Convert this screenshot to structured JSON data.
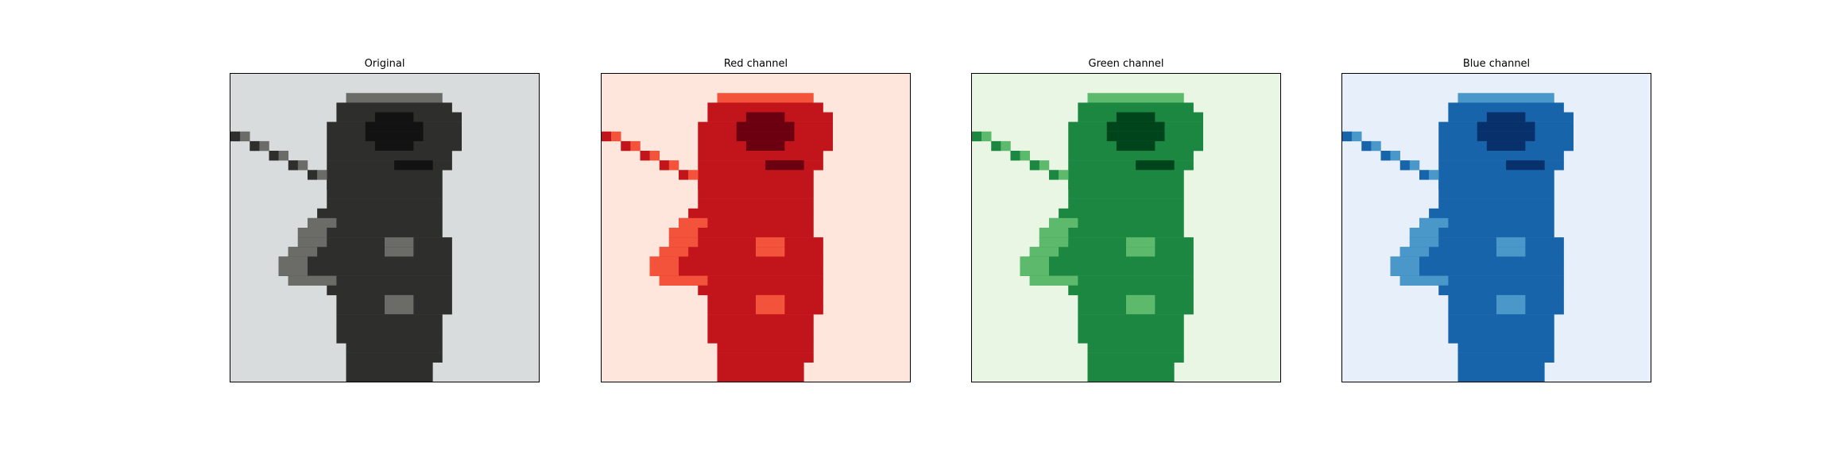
{
  "figure": {
    "panels": [
      {
        "title": "Original",
        "colormap": "gray",
        "background": "#d9dcdc",
        "mid": "#6b6b68",
        "dark": "#2e2e2c",
        "darkest": "#121212"
      },
      {
        "title": "Red channel",
        "colormap": "Reds",
        "background": "#fee6dc",
        "mid": "#f4533b",
        "dark": "#c2141b",
        "darkest": "#6a0010"
      },
      {
        "title": "Green channel",
        "colormap": "Greens",
        "background": "#e9f6e4",
        "mid": "#5db96b",
        "dark": "#1c8741",
        "darkest": "#00441b"
      },
      {
        "title": "Blue channel",
        "colormap": "Blues",
        "background": "#e7f0fa",
        "mid": "#4a98c9",
        "dark": "#1764ab",
        "darkest": "#08306b"
      }
    ]
  }
}
